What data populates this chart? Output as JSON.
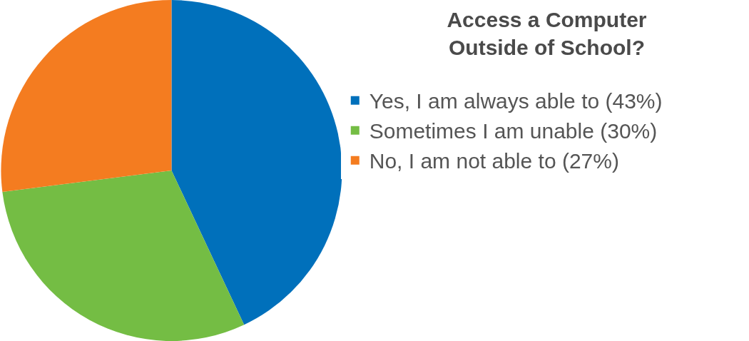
{
  "chart_data": {
    "type": "pie",
    "title": "Access a Computer\nOutside of School?",
    "categories": [
      "Yes, I am always able to (43%)",
      "Sometimes I am unable (30%)",
      "No, I am not able to (27%)"
    ],
    "values": [
      43,
      30,
      27
    ],
    "colors": [
      "#0070bb",
      "#74bd44",
      "#f47c20"
    ],
    "legend": "right"
  }
}
